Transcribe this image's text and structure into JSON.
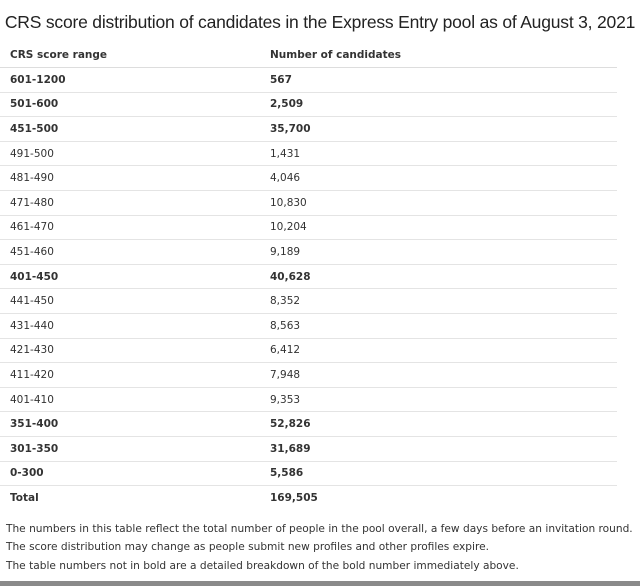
{
  "title": "CRS score distribution of candidates in the Express Entry pool as of August 3, 2021",
  "table": {
    "headers": [
      "CRS score range",
      "Number of candidates"
    ],
    "rows": [
      {
        "range": "601-1200",
        "count": "567",
        "bold": true
      },
      {
        "range": "501-600",
        "count": "2,509",
        "bold": true
      },
      {
        "range": "451-500",
        "count": "35,700",
        "bold": true
      },
      {
        "range": "491-500",
        "count": "1,431",
        "bold": false
      },
      {
        "range": "481-490",
        "count": "4,046",
        "bold": false
      },
      {
        "range": "471-480",
        "count": "10,830",
        "bold": false
      },
      {
        "range": "461-470",
        "count": "10,204",
        "bold": false
      },
      {
        "range": "451-460",
        "count": "9,189",
        "bold": false
      },
      {
        "range": "401-450",
        "count": "40,628",
        "bold": true
      },
      {
        "range": "441-450",
        "count": "8,352",
        "bold": false
      },
      {
        "range": "431-440",
        "count": "8,563",
        "bold": false
      },
      {
        "range": "421-430",
        "count": "6,412",
        "bold": false
      },
      {
        "range": "411-420",
        "count": "7,948",
        "bold": false
      },
      {
        "range": "401-410",
        "count": "9,353",
        "bold": false
      },
      {
        "range": "351-400",
        "count": "52,826",
        "bold": true
      },
      {
        "range": "301-350",
        "count": "31,689",
        "bold": true
      },
      {
        "range": "0-300",
        "count": "5,586",
        "bold": true
      }
    ],
    "total": {
      "label": "Total",
      "count": "169,505"
    }
  },
  "notes": [
    "The numbers in this table reflect the total number of people in the pool overall, a few days before an invitation round.",
    "The score distribution may change as people submit new profiles and other profiles expire.",
    "The table numbers not in bold are a detailed breakdown of the bold number immediately above."
  ]
}
